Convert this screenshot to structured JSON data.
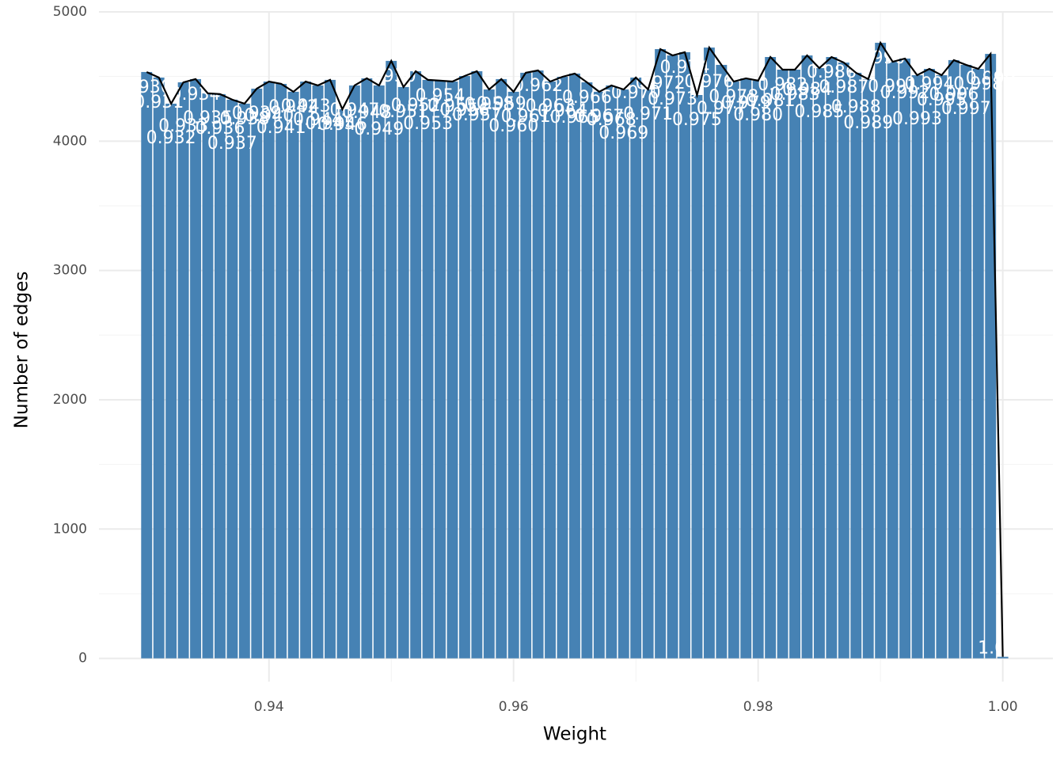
{
  "chart_data": {
    "type": "bar",
    "x_label": "Weight",
    "y_label": "Number of edges",
    "x": [
      0.93,
      0.931,
      0.932,
      0.933,
      0.934,
      0.935,
      0.936,
      0.937,
      0.938,
      0.939,
      0.94,
      0.941,
      0.942,
      0.943,
      0.944,
      0.945,
      0.946,
      0.947,
      0.948,
      0.949,
      0.95,
      0.951,
      0.952,
      0.953,
      0.954,
      0.955,
      0.956,
      0.957,
      0.958,
      0.959,
      0.96,
      0.961,
      0.962,
      0.963,
      0.964,
      0.965,
      0.966,
      0.967,
      0.968,
      0.969,
      0.97,
      0.971,
      0.972,
      0.973,
      0.974,
      0.975,
      0.976,
      0.977,
      0.978,
      0.979,
      0.98,
      0.981,
      0.982,
      0.983,
      0.984,
      0.985,
      0.986,
      0.987,
      0.988,
      0.989,
      0.99,
      0.991,
      0.992,
      0.993,
      0.994,
      0.995,
      0.996,
      0.997,
      0.998,
      0.999,
      1.0
    ],
    "values": [
      4535,
      4492,
      4290,
      4455,
      4480,
      4370,
      4364,
      4321,
      4290,
      4406,
      4461,
      4443,
      4382,
      4461,
      4431,
      4474,
      4247,
      4431,
      4486,
      4431,
      4621,
      4419,
      4541,
      4474,
      4468,
      4461,
      4504,
      4541,
      4400,
      4480,
      4382,
      4529,
      4547,
      4461,
      4498,
      4523,
      4455,
      4382,
      4431,
      4400,
      4492,
      4400,
      4712,
      4663,
      4688,
      4357,
      4724,
      4590,
      4461,
      4486,
      4468,
      4651,
      4553,
      4553,
      4663,
      4565,
      4651,
      4608,
      4529,
      4480,
      4761,
      4614,
      4639,
      4510,
      4559,
      4510,
      4627,
      4590,
      4559,
      4675,
      12
    ],
    "bar_labels": [
      "0.930",
      "0.931",
      "0.932",
      "0.933",
      "0.934",
      "0.935",
      "0.936",
      "0.937",
      "0.938",
      "0.939",
      "0.940",
      "0.941",
      "0.942",
      "0.943",
      "0.944",
      "0.945",
      "0.946",
      "0.947",
      "0.948",
      "0.949",
      "0.950",
      "0.951",
      "0.952",
      "0.953",
      "0.954",
      "0.955",
      "0.956",
      "0.957",
      "0.958",
      "0.959",
      "0.960",
      "0.961",
      "0.962",
      "0.963",
      "0.964",
      "0.965",
      "0.966",
      "0.967",
      "0.968",
      "0.969",
      "0.970",
      "0.971",
      "0.972",
      "0.973",
      "0.974",
      "0.975",
      "0.976",
      "0.977",
      "0.978",
      "0.979",
      "0.980",
      "0.981",
      "0.982",
      "0.983",
      "0.984",
      "0.985",
      "0.986",
      "0.987",
      "0.988",
      "0.989",
      "0.990",
      "0.991",
      "0.992",
      "0.993",
      "0.994",
      "0.995",
      "0.996",
      "0.997",
      "0.998",
      "0.999",
      "1.000"
    ],
    "color": "#4682b4",
    "line_color": "#000000",
    "xlim": [
      0.9261,
      1.0041
    ],
    "xticks": [
      0.94,
      0.96,
      0.98,
      {
        "value": 1,
        "label": "1.00"
      }
    ],
    "ylim": [
      -180,
      5000
    ],
    "yticks": [
      0,
      1000,
      2000,
      3000,
      4000,
      5000
    ],
    "grid": true
  }
}
